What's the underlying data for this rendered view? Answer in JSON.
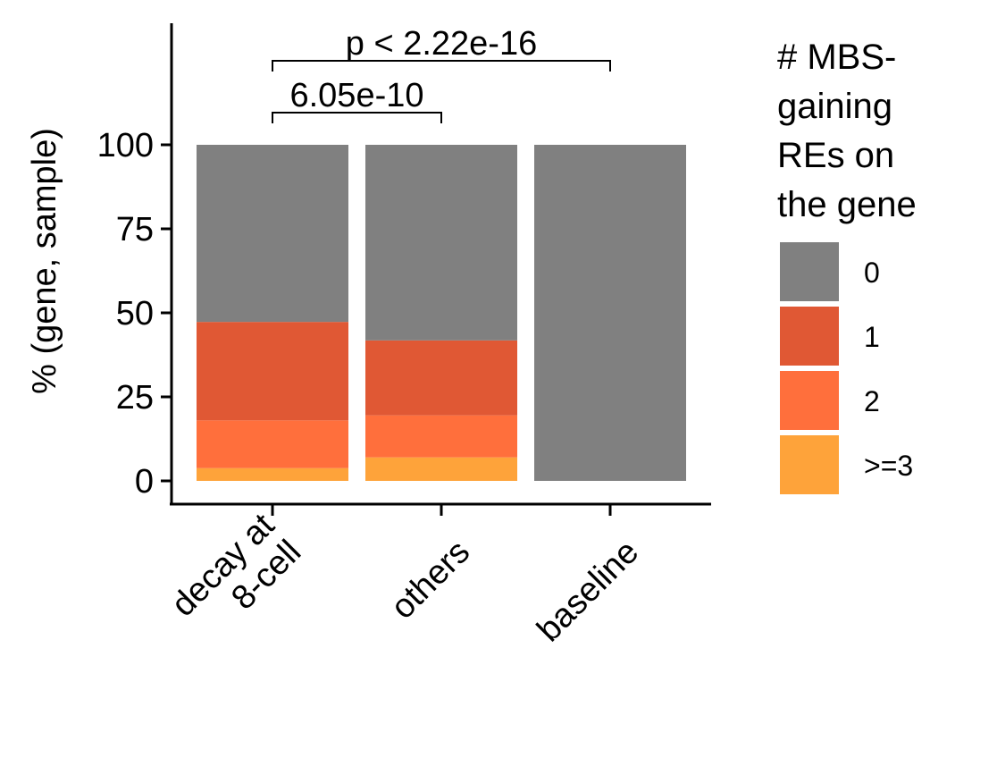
{
  "chart_data": {
    "type": "bar",
    "stacked": true,
    "categories": [
      [
        "decay at",
        "8-cell"
      ],
      [
        "others"
      ],
      [
        "baseline"
      ]
    ],
    "ylabel": "% (gene, sample)",
    "xlabel": "",
    "title": "",
    "ylim": [
      0,
      100
    ],
    "yticks": [
      "0",
      "25",
      "50",
      "75",
      "100"
    ],
    "series": [
      {
        "name": ">=3",
        "color": "#FEA33A",
        "values": [
          3.8,
          7.0,
          0
        ]
      },
      {
        "name": "2",
        "color": "#FF6F3C",
        "values": [
          14.2,
          12.5,
          0
        ]
      },
      {
        "name": "1",
        "color": "#E05834",
        "values": [
          29.3,
          22.3,
          0
        ]
      },
      {
        "name": "0",
        "color": "#808080",
        "values": [
          52.7,
          58.2,
          100
        ]
      }
    ],
    "legend": {
      "title": [
        "# MBS-",
        "gaining",
        "REs on",
        "the gene"
      ],
      "order": [
        "0",
        "1",
        "2",
        ">=3"
      ],
      "position": "right"
    },
    "annotations": [
      {
        "label": "6.05e-10",
        "from": 0,
        "to": 1
      },
      {
        "label": "p < 2.22e-16",
        "from": 0,
        "to": 2
      }
    ],
    "grid": false
  }
}
